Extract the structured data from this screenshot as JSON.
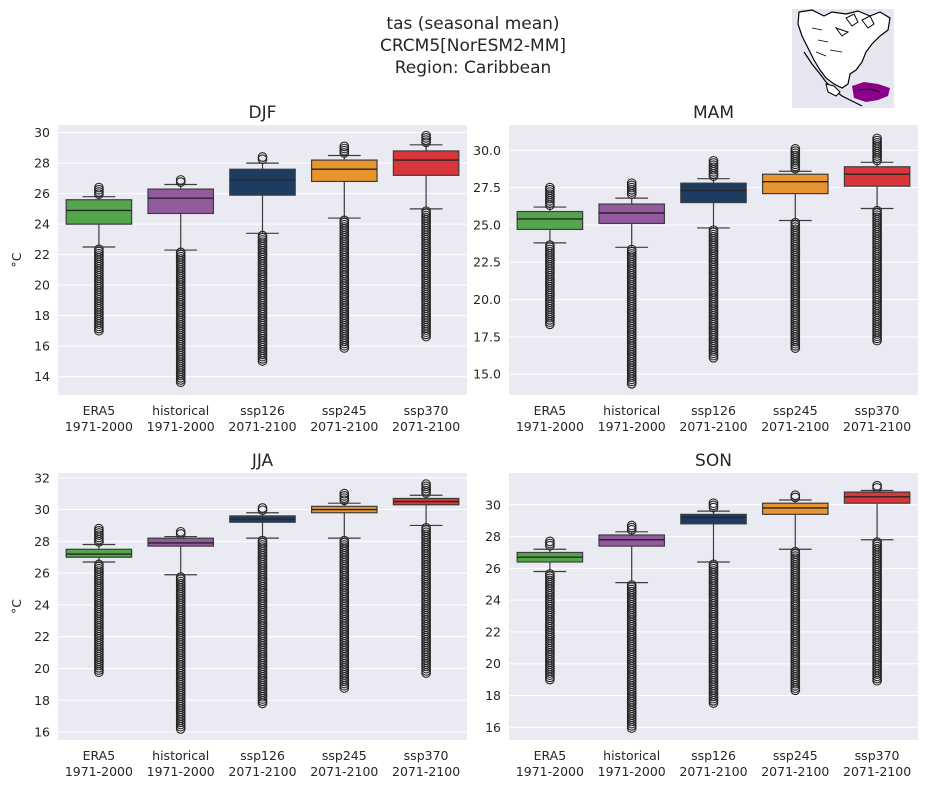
{
  "title_lines": [
    "tas (seasonal mean)",
    "CRCM5[NorESM2-MM]",
    "Region: Caribbean"
  ],
  "colors": {
    "ERA5": "#55a54c",
    "historical": "#935aa0",
    "ssp126": "#1d3c62",
    "ssp245": "#e8942f",
    "ssp370": "#d9363b",
    "panel_bg": "#eaeaf2",
    "grid": "#ffffff",
    "median_line": "#262626",
    "map_land_outline": "#000000",
    "map_region": "#8b008b"
  },
  "inset_map": {
    "description_icon": "north-america-map-icon",
    "region_highlight": "Caribbean"
  },
  "chart_data": [
    {
      "type": "box",
      "title": "DJF",
      "ylabel": "°C",
      "ylim": [
        12.8,
        30.5
      ],
      "yticks": [
        "14",
        "16",
        "18",
        "20",
        "22",
        "24",
        "26",
        "28",
        "30"
      ],
      "ytick_values": [
        14,
        16,
        18,
        20,
        22,
        24,
        26,
        28,
        30
      ],
      "categories": [
        [
          "ERA5",
          "1971-2000"
        ],
        [
          "historical",
          "1971-2000"
        ],
        [
          "ssp126",
          "2071-2100"
        ],
        [
          "ssp245",
          "2071-2100"
        ],
        [
          "ssp370",
          "2071-2100"
        ]
      ],
      "boxes": [
        {
          "name": "ERA5",
          "q1": 24.0,
          "median": 24.9,
          "q3": 25.6,
          "whisker_low": 22.5,
          "whisker_high": 25.8,
          "out_low_min": 16.9,
          "out_high_max": 26.4
        },
        {
          "name": "historical",
          "q1": 24.7,
          "median": 25.7,
          "q3": 26.3,
          "whisker_low": 22.3,
          "whisker_high": 26.6,
          "out_low_min": 13.5,
          "out_high_max": 26.9
        },
        {
          "name": "ssp126",
          "q1": 25.9,
          "median": 26.9,
          "q3": 27.6,
          "whisker_low": 23.4,
          "whisker_high": 28.0,
          "out_low_min": 15.0,
          "out_high_max": 28.4
        },
        {
          "name": "ssp245",
          "q1": 26.8,
          "median": 27.6,
          "q3": 28.2,
          "whisker_low": 24.4,
          "whisker_high": 28.5,
          "out_low_min": 15.8,
          "out_high_max": 29.1
        },
        {
          "name": "ssp370",
          "q1": 27.2,
          "median": 28.2,
          "q3": 28.8,
          "whisker_low": 25.0,
          "whisker_high": 29.2,
          "out_low_min": 16.5,
          "out_high_max": 29.8
        }
      ]
    },
    {
      "type": "box",
      "title": "MAM",
      "ylabel": "",
      "ylim": [
        13.6,
        31.7
      ],
      "yticks": [
        "15.0",
        "17.5",
        "20.0",
        "22.5",
        "25.0",
        "27.5",
        "30.0"
      ],
      "ytick_values": [
        15.0,
        17.5,
        20.0,
        22.5,
        25.0,
        27.5,
        30.0
      ],
      "categories": [
        [
          "ERA5",
          "1971-2000"
        ],
        [
          "historical",
          "1971-2000"
        ],
        [
          "ssp126",
          "2071-2100"
        ],
        [
          "ssp245",
          "2071-2100"
        ],
        [
          "ssp370",
          "2071-2100"
        ]
      ],
      "boxes": [
        {
          "name": "ERA5",
          "q1": 24.7,
          "median": 25.4,
          "q3": 25.9,
          "whisker_low": 23.8,
          "whisker_high": 26.2,
          "out_low_min": 18.3,
          "out_high_max": 27.5
        },
        {
          "name": "historical",
          "q1": 25.1,
          "median": 25.8,
          "q3": 26.4,
          "whisker_low": 23.5,
          "whisker_high": 26.8,
          "out_low_min": 14.3,
          "out_high_max": 27.8
        },
        {
          "name": "ssp126",
          "q1": 26.5,
          "median": 27.3,
          "q3": 27.8,
          "whisker_low": 24.8,
          "whisker_high": 28.1,
          "out_low_min": 16.0,
          "out_high_max": 29.3
        },
        {
          "name": "ssp245",
          "q1": 27.1,
          "median": 27.9,
          "q3": 28.4,
          "whisker_low": 25.3,
          "whisker_high": 28.6,
          "out_low_min": 16.6,
          "out_high_max": 30.1
        },
        {
          "name": "ssp370",
          "q1": 27.6,
          "median": 28.4,
          "q3": 28.9,
          "whisker_low": 26.1,
          "whisker_high": 29.2,
          "out_low_min": 17.2,
          "out_high_max": 30.8
        }
      ]
    },
    {
      "type": "box",
      "title": "JJA",
      "ylabel": "°C",
      "ylim": [
        15.5,
        32.3
      ],
      "yticks": [
        "16",
        "18",
        "20",
        "22",
        "24",
        "26",
        "28",
        "30",
        "32"
      ],
      "ytick_values": [
        16,
        18,
        20,
        22,
        24,
        26,
        28,
        30,
        32
      ],
      "categories": [
        [
          "ERA5",
          "1971-2000"
        ],
        [
          "historical",
          "1971-2000"
        ],
        [
          "ssp126",
          "2071-2100"
        ],
        [
          "ssp245",
          "2071-2100"
        ],
        [
          "ssp370",
          "2071-2100"
        ]
      ],
      "boxes": [
        {
          "name": "ERA5",
          "q1": 27.0,
          "median": 27.2,
          "q3": 27.5,
          "whisker_low": 26.7,
          "whisker_high": 27.8,
          "out_low_min": 19.7,
          "out_high_max": 28.8
        },
        {
          "name": "historical",
          "q1": 27.7,
          "median": 27.9,
          "q3": 28.2,
          "whisker_low": 25.9,
          "whisker_high": 28.3,
          "out_low_min": 16.1,
          "out_high_max": 28.6
        },
        {
          "name": "ssp126",
          "q1": 29.2,
          "median": 29.4,
          "q3": 29.6,
          "whisker_low": 28.2,
          "whisker_high": 29.8,
          "out_low_min": 17.8,
          "out_high_max": 30.1
        },
        {
          "name": "ssp245",
          "q1": 29.8,
          "median": 30.0,
          "q3": 30.2,
          "whisker_low": 28.2,
          "whisker_high": 30.4,
          "out_low_min": 18.7,
          "out_high_max": 31.0
        },
        {
          "name": "ssp370",
          "q1": 30.3,
          "median": 30.5,
          "q3": 30.7,
          "whisker_low": 29.0,
          "whisker_high": 30.9,
          "out_low_min": 19.6,
          "out_high_max": 31.6
        }
      ]
    },
    {
      "type": "box",
      "title": "SON",
      "ylabel": "",
      "ylim": [
        15.2,
        32.0
      ],
      "yticks": [
        "16",
        "18",
        "20",
        "22",
        "24",
        "26",
        "28",
        "30"
      ],
      "ytick_values": [
        16,
        18,
        20,
        22,
        24,
        26,
        28,
        30
      ],
      "categories": [
        [
          "ERA5",
          "1971-2000"
        ],
        [
          "historical",
          "1971-2000"
        ],
        [
          "ssp126",
          "2071-2100"
        ],
        [
          "ssp245",
          "2071-2100"
        ],
        [
          "ssp370",
          "2071-2100"
        ]
      ],
      "boxes": [
        {
          "name": "ERA5",
          "q1": 26.4,
          "median": 26.7,
          "q3": 27.0,
          "whisker_low": 25.8,
          "whisker_high": 27.2,
          "out_low_min": 19.0,
          "out_high_max": 27.7
        },
        {
          "name": "historical",
          "q1": 27.4,
          "median": 27.8,
          "q3": 28.1,
          "whisker_low": 25.1,
          "whisker_high": 28.3,
          "out_low_min": 15.9,
          "out_high_max": 28.7
        },
        {
          "name": "ssp126",
          "q1": 28.8,
          "median": 29.2,
          "q3": 29.4,
          "whisker_low": 26.4,
          "whisker_high": 29.6,
          "out_low_min": 17.4,
          "out_high_max": 30.1
        },
        {
          "name": "ssp245",
          "q1": 29.4,
          "median": 29.8,
          "q3": 30.1,
          "whisker_low": 27.2,
          "whisker_high": 30.3,
          "out_low_min": 18.2,
          "out_high_max": 30.6
        },
        {
          "name": "ssp370",
          "q1": 30.1,
          "median": 30.5,
          "q3": 30.8,
          "whisker_low": 27.8,
          "whisker_high": 30.9,
          "out_low_min": 18.9,
          "out_high_max": 31.2
        }
      ]
    }
  ]
}
